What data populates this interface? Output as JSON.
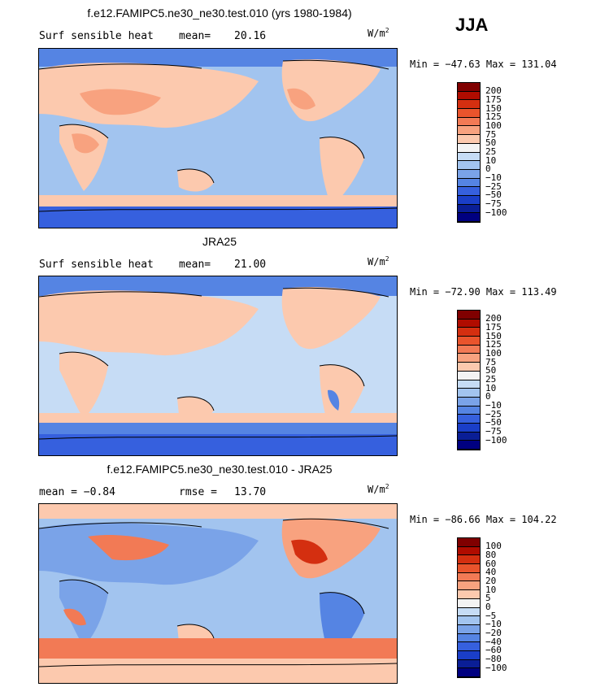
{
  "season": "JJA",
  "units": {
    "base": "W/m",
    "exp": "2"
  },
  "panels": [
    {
      "title": "f.e12.FAMIPC5.ne30_ne30.test.010 (yrs 1980-1984)",
      "left_label": "Surf sensible heat",
      "mean_label": "mean=",
      "mean_value": "20.16",
      "min_max": "Min = −47.63 Max = 131.04",
      "levels": [
        "200",
        "175",
        "150",
        "125",
        "100",
        "75",
        "50",
        "25",
        "10",
        "0",
        "−10",
        "−25",
        "−50",
        "−75",
        "−100"
      ]
    },
    {
      "title": "JRA25",
      "left_label": "Surf sensible heat",
      "mean_label": "mean=",
      "mean_value": "21.00",
      "min_max": "Min = −72.90 Max = 113.49",
      "levels": [
        "200",
        "175",
        "150",
        "125",
        "100",
        "75",
        "50",
        "25",
        "10",
        "0",
        "−10",
        "−25",
        "−50",
        "−75",
        "−100"
      ]
    },
    {
      "title": "f.e12.FAMIPC5.ne30_ne30.test.010 - JRA25",
      "left_label": "mean =  −0.84",
      "mean_label": "rmse =",
      "mean_value": "13.70",
      "min_max": "Min = −86.66 Max = 104.22",
      "levels": [
        "100",
        "80",
        "60",
        "40",
        "20",
        "10",
        "5",
        "0",
        "−5",
        "−10",
        "−20",
        "−40",
        "−60",
        "−80",
        "−100"
      ]
    }
  ],
  "colorbar_colors": [
    "#800000",
    "#b00c00",
    "#d42f10",
    "#e9542c",
    "#f27a55",
    "#f8a27f",
    "#fcc9ae",
    "#f3f3f3",
    "#c6dcf5",
    "#a2c4ef",
    "#7aa3e8",
    "#5584e3",
    "#3660de",
    "#1a3ec8",
    "#0a1e96",
    "#000080"
  ]
}
